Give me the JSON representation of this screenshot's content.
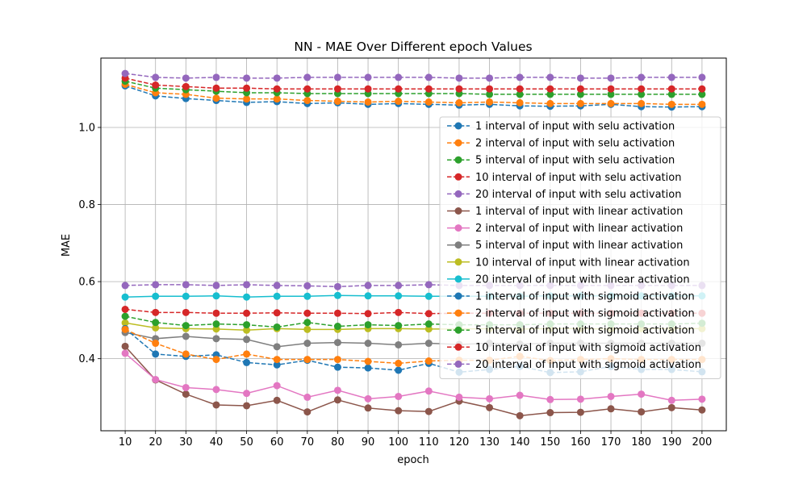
{
  "chart_data": {
    "type": "line",
    "title": "NN - MAE Over Different epoch Values",
    "xlabel": "epoch",
    "ylabel": "MAE",
    "x": [
      10,
      20,
      30,
      40,
      50,
      60,
      70,
      80,
      90,
      100,
      110,
      120,
      130,
      140,
      150,
      160,
      170,
      180,
      190,
      200
    ],
    "xlim": [
      2,
      208
    ],
    "ylim": [
      0.213,
      1.18
    ],
    "yticks": [
      0.4,
      0.6,
      0.8,
      1.0
    ],
    "ytick_labels": [
      "0.4",
      "0.6",
      "0.8",
      "1.0"
    ],
    "grid": true,
    "legend_position": "right",
    "series": [
      {
        "name": "1 interval of input with selu activation",
        "color": "#1f77b4",
        "linestyle": "dashed",
        "values": [
          1.108,
          1.082,
          1.075,
          1.07,
          1.065,
          1.067,
          1.062,
          1.064,
          1.06,
          1.062,
          1.06,
          1.058,
          1.06,
          1.056,
          1.055,
          1.056,
          1.06,
          1.054,
          1.053,
          1.054
        ]
      },
      {
        "name": "2 interval of input with selu activation",
        "color": "#ff7f0e",
        "linestyle": "dashed",
        "values": [
          1.112,
          1.09,
          1.086,
          1.076,
          1.074,
          1.074,
          1.07,
          1.068,
          1.066,
          1.068,
          1.066,
          1.064,
          1.066,
          1.064,
          1.062,
          1.062,
          1.062,
          1.062,
          1.06,
          1.06
        ]
      },
      {
        "name": "5 interval of input with selu activation",
        "color": "#2ca02c",
        "linestyle": "dashed",
        "values": [
          1.12,
          1.102,
          1.098,
          1.094,
          1.09,
          1.09,
          1.088,
          1.088,
          1.088,
          1.088,
          1.088,
          1.088,
          1.086,
          1.086,
          1.086,
          1.086,
          1.086,
          1.086,
          1.086,
          1.086
        ]
      },
      {
        "name": "10 interval of input with selu activation",
        "color": "#d62728",
        "linestyle": "dashed",
        "values": [
          1.128,
          1.11,
          1.106,
          1.102,
          1.102,
          1.1,
          1.1,
          1.1,
          1.1,
          1.1,
          1.1,
          1.1,
          1.1,
          1.1,
          1.1,
          1.1,
          1.1,
          1.1,
          1.1,
          1.1
        ]
      },
      {
        "name": "20 interval of input with selu activation",
        "color": "#9467bd",
        "linestyle": "dashed",
        "values": [
          1.14,
          1.13,
          1.128,
          1.13,
          1.128,
          1.128,
          1.13,
          1.13,
          1.13,
          1.13,
          1.13,
          1.128,
          1.128,
          1.13,
          1.13,
          1.128,
          1.128,
          1.13,
          1.13,
          1.13
        ]
      },
      {
        "name": "1 interval of input with linear activation",
        "color": "#8c564b",
        "linestyle": "solid",
        "values": [
          0.432,
          0.345,
          0.308,
          0.28,
          0.278,
          0.292,
          0.262,
          0.293,
          0.272,
          0.265,
          0.263,
          0.29,
          0.273,
          0.252,
          0.26,
          0.261,
          0.27,
          0.262,
          0.273,
          0.267
        ]
      },
      {
        "name": "2 interval of input with linear activation",
        "color": "#e377c2",
        "linestyle": "solid",
        "values": [
          0.414,
          0.346,
          0.325,
          0.32,
          0.31,
          0.33,
          0.3,
          0.318,
          0.296,
          0.302,
          0.316,
          0.3,
          0.296,
          0.305,
          0.294,
          0.295,
          0.302,
          0.308,
          0.292,
          0.295
        ]
      },
      {
        "name": "5 interval of input with linear activation",
        "color": "#7f7f7f",
        "linestyle": "solid",
        "values": [
          0.468,
          0.452,
          0.458,
          0.452,
          0.45,
          0.431,
          0.44,
          0.442,
          0.44,
          0.436,
          0.44,
          0.437,
          0.44,
          0.438,
          0.44,
          0.44,
          0.44,
          0.44,
          0.44,
          0.44
        ]
      },
      {
        "name": "10 interval of input with linear activation",
        "color": "#bcbd22",
        "linestyle": "solid",
        "values": [
          0.493,
          0.48,
          0.478,
          0.477,
          0.474,
          0.478,
          0.476,
          0.476,
          0.478,
          0.478,
          0.477,
          0.477,
          0.478,
          0.477,
          0.478,
          0.478,
          0.477,
          0.478,
          0.478,
          0.478
        ]
      },
      {
        "name": "20 interval of input with linear activation",
        "color": "#17becf",
        "linestyle": "solid",
        "values": [
          0.56,
          0.562,
          0.562,
          0.563,
          0.56,
          0.562,
          0.562,
          0.564,
          0.563,
          0.563,
          0.562,
          0.562,
          0.562,
          0.562,
          0.563,
          0.563,
          0.563,
          0.563,
          0.563,
          0.563
        ]
      },
      {
        "name": "1 interval of input with sigmoid activation",
        "color": "#1f77b4",
        "linestyle": "dashed",
        "values": [
          0.478,
          0.412,
          0.406,
          0.41,
          0.39,
          0.384,
          0.396,
          0.378,
          0.376,
          0.37,
          0.388,
          0.365,
          0.372,
          0.38,
          0.364,
          0.366,
          0.38,
          0.372,
          0.372,
          0.366
        ]
      },
      {
        "name": "2 interval of input with sigmoid activation",
        "color": "#ff7f0e",
        "linestyle": "dashed",
        "values": [
          0.476,
          0.44,
          0.412,
          0.398,
          0.412,
          0.398,
          0.398,
          0.398,
          0.393,
          0.388,
          0.394,
          0.396,
          0.396,
          0.406,
          0.395,
          0.398,
          0.4,
          0.398,
          0.398,
          0.398
        ]
      },
      {
        "name": "5 interval of input with sigmoid activation",
        "color": "#2ca02c",
        "linestyle": "dashed",
        "values": [
          0.51,
          0.494,
          0.486,
          0.49,
          0.488,
          0.482,
          0.494,
          0.484,
          0.488,
          0.486,
          0.49,
          0.488,
          0.488,
          0.488,
          0.49,
          0.49,
          0.49,
          0.49,
          0.49,
          0.492
        ]
      },
      {
        "name": "10 interval of input with sigmoid activation",
        "color": "#d62728",
        "linestyle": "dashed",
        "values": [
          0.528,
          0.52,
          0.52,
          0.518,
          0.518,
          0.519,
          0.518,
          0.518,
          0.517,
          0.52,
          0.517,
          0.518,
          0.518,
          0.518,
          0.518,
          0.518,
          0.518,
          0.518,
          0.518,
          0.518
        ]
      },
      {
        "name": "20 interval of input with sigmoid activation",
        "color": "#9467bd",
        "linestyle": "dashed",
        "values": [
          0.59,
          0.592,
          0.592,
          0.59,
          0.592,
          0.59,
          0.589,
          0.587,
          0.59,
          0.59,
          0.592,
          0.59,
          0.59,
          0.59,
          0.59,
          0.59,
          0.59,
          0.59,
          0.59,
          0.59
        ]
      }
    ]
  }
}
